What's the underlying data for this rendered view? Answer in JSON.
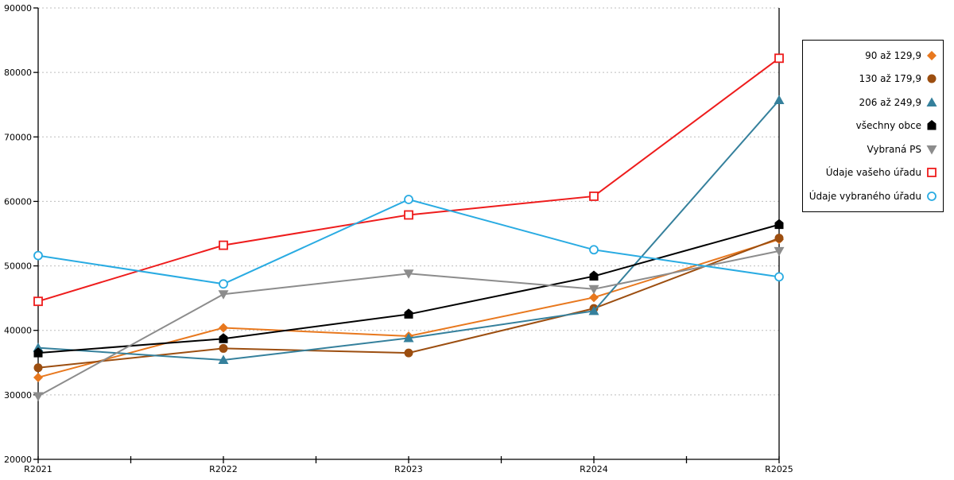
{
  "page": {
    "background": "#ffffff"
  },
  "chart_data": {
    "type": "line",
    "title": "",
    "xlabel": "",
    "ylabel": "",
    "categories": [
      "R2021",
      "R2022",
      "R2023",
      "R2024",
      "R2025"
    ],
    "series": [
      {
        "name": "90 až 129,9",
        "marker": "diamond",
        "color": "#e8781e",
        "values": [
          32700,
          40400,
          39100,
          45100,
          54100
        ]
      },
      {
        "name": "130 až 179,9",
        "marker": "circle",
        "color": "#9c4e10",
        "values": [
          34200,
          37200,
          36500,
          43400,
          54300
        ]
      },
      {
        "name": "206 až 249,9",
        "marker": "triangle-up",
        "color": "#35809c",
        "values": [
          37300,
          35400,
          38800,
          43000,
          75700
        ]
      },
      {
        "name": "všechny obce",
        "marker": "pentagon",
        "color": "#000000",
        "values": [
          36500,
          38700,
          42500,
          48400,
          56400
        ]
      },
      {
        "name": "Vybraná PS",
        "marker": "triangle-down",
        "color": "#8c8c8c",
        "values": [
          29800,
          45600,
          48800,
          46400,
          52300
        ]
      },
      {
        "name": "Údaje vašeho úřadu",
        "marker": "square-open",
        "color": "#ee1c1c",
        "values": [
          44500,
          53200,
          57900,
          60800,
          82200
        ]
      },
      {
        "name": "Údaje vybraného úřadu",
        "marker": "circle-open",
        "color": "#29abe2",
        "values": [
          51600,
          47200,
          60300,
          52500,
          48300
        ]
      }
    ],
    "ylim": [
      20000,
      90000
    ],
    "ytick_step": 10000,
    "y_tick_labels": [
      "20000",
      "30000",
      "40000",
      "50000",
      "60000",
      "70000",
      "80000",
      "90000"
    ],
    "grid": "horizontal-dotted",
    "legend_position": "right",
    "colors": {
      "axis": "#000000",
      "gridline": "#bdbdbd",
      "legend_border": "#000000",
      "marker_open_fill": "#ffffff"
    }
  }
}
